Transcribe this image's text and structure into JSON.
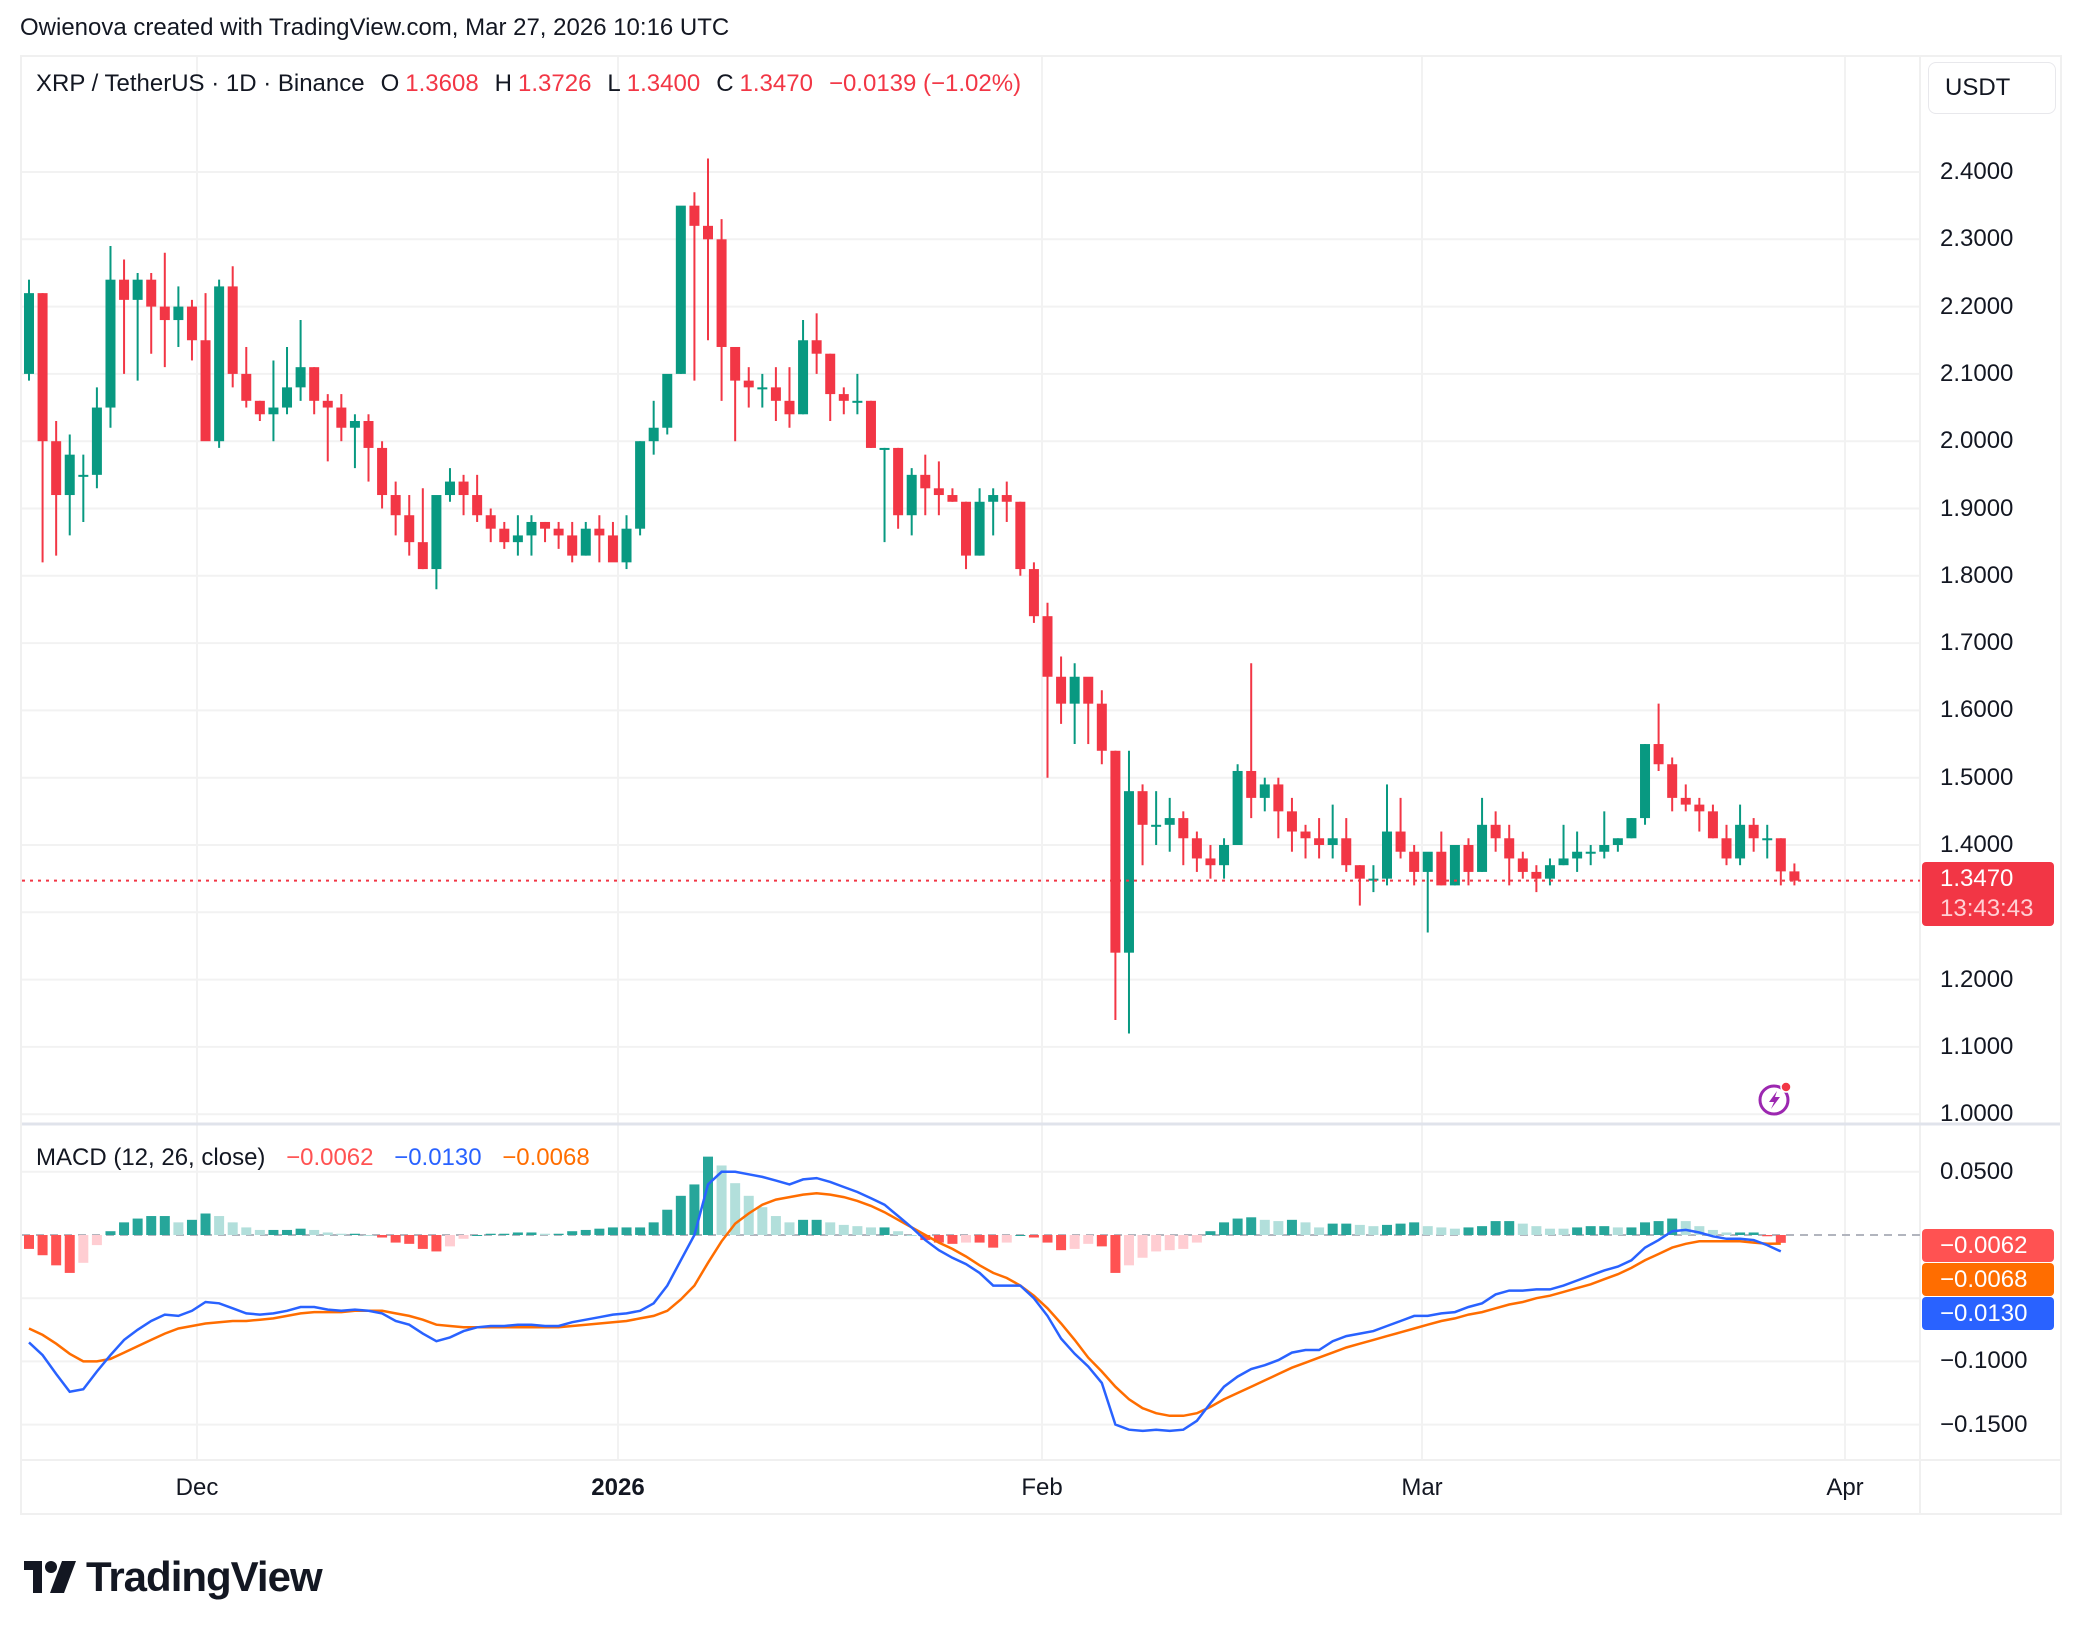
{
  "caption": "Owienova created with TradingView.com, Mar 27, 2026 10:16 UTC",
  "legend": {
    "symbol": "XRP / TetherUS · 1D · Binance",
    "open_label": "O",
    "open": "1.3608",
    "high_label": "H",
    "high": "1.3726",
    "low_label": "L",
    "low": "1.3400",
    "close_label": "C",
    "close": "1.3470",
    "change": "−0.0139 (−1.02%)"
  },
  "currency_button": "USDT",
  "price_axis": {
    "labels": [
      "2.4000",
      "2.3000",
      "2.2000",
      "2.1000",
      "2.0000",
      "1.9000",
      "1.8000",
      "1.7000",
      "1.6000",
      "1.5000",
      "1.4000",
      "1.3000",
      "1.2000",
      "1.1000",
      "1.0000"
    ],
    "current_price_tag": "1.3470",
    "countdown": "13:43:43"
  },
  "macd_legend": {
    "title": "MACD (12, 26, close)",
    "histogram": "−0.0062",
    "macd": "−0.0130",
    "signal": "−0.0068"
  },
  "macd_axis": {
    "labels": [
      "0.0500",
      "−0.1000",
      "−0.1500"
    ],
    "tags": [
      {
        "value": "−0.0062",
        "color": "#ff5252"
      },
      {
        "value": "−0.0068",
        "color": "#ff6d00"
      },
      {
        "value": "−0.0130",
        "color": "#2962ff"
      }
    ]
  },
  "x_axis": {
    "labels": [
      {
        "text": "Dec",
        "bold": false
      },
      {
        "text": "2026",
        "bold": true
      },
      {
        "text": "Feb",
        "bold": false
      },
      {
        "text": "Mar",
        "bold": false
      },
      {
        "text": "Apr",
        "bold": false
      }
    ]
  },
  "brand": "TradingView",
  "colors": {
    "up": "#089981",
    "down": "#f23645",
    "macd_line": "#2962ff",
    "signal_line": "#ff6d00",
    "hist_up_strong": "#26a69a",
    "hist_up_weak": "#b2dfdb",
    "hist_down_strong": "#ff5252",
    "hist_down_weak": "#ffcdd2",
    "grid": "#f2f2f2",
    "price_line": "#f23645",
    "bolt": "#9c27b0"
  },
  "chart_data": [
    {
      "type": "candlestick",
      "title": "XRP / TetherUS · 1D · Binance",
      "xlabel": "",
      "ylabel": "USDT",
      "ylim": [
        1.0,
        2.45
      ],
      "x_tick_labels": [
        "Dec",
        "2026",
        "Feb",
        "Mar",
        "Apr"
      ],
      "y_tick_labels": [
        "2.4000",
        "2.3000",
        "2.2000",
        "2.1000",
        "2.0000",
        "1.9000",
        "1.8000",
        "1.7000",
        "1.6000",
        "1.5000",
        "1.4000",
        "1.3000",
        "1.2000",
        "1.1000",
        "1.0000"
      ],
      "grid": true,
      "last_price": 1.347,
      "start_date": "2025-11-18",
      "interval": "1D",
      "ohlc": [
        [
          2.1,
          2.24,
          2.09,
          2.22
        ],
        [
          2.22,
          2.22,
          1.82,
          2.0
        ],
        [
          2.0,
          2.03,
          1.83,
          1.92
        ],
        [
          1.92,
          2.01,
          1.86,
          1.98
        ],
        [
          1.95,
          1.98,
          1.88,
          1.95
        ],
        [
          1.95,
          2.08,
          1.93,
          2.05
        ],
        [
          2.05,
          2.29,
          2.02,
          2.24
        ],
        [
          2.24,
          2.27,
          2.1,
          2.21
        ],
        [
          2.21,
          2.25,
          2.09,
          2.24
        ],
        [
          2.24,
          2.25,
          2.13,
          2.2
        ],
        [
          2.2,
          2.28,
          2.11,
          2.18
        ],
        [
          2.18,
          2.23,
          2.14,
          2.2
        ],
        [
          2.2,
          2.21,
          2.12,
          2.15
        ],
        [
          2.15,
          2.22,
          2.02,
          2.0
        ],
        [
          2.0,
          2.24,
          1.99,
          2.23
        ],
        [
          2.23,
          2.26,
          2.08,
          2.1
        ],
        [
          2.1,
          2.14,
          2.05,
          2.06
        ],
        [
          2.06,
          2.06,
          2.03,
          2.04
        ],
        [
          2.04,
          2.12,
          2.0,
          2.05
        ],
        [
          2.05,
          2.14,
          2.04,
          2.08
        ],
        [
          2.08,
          2.18,
          2.06,
          2.11
        ],
        [
          2.11,
          2.11,
          2.04,
          2.06
        ],
        [
          2.06,
          2.07,
          1.97,
          2.05
        ],
        [
          2.05,
          2.07,
          2.0,
          2.02
        ],
        [
          2.02,
          2.04,
          1.96,
          2.03
        ],
        [
          2.03,
          2.04,
          1.94,
          1.99
        ],
        [
          1.99,
          2.0,
          1.9,
          1.92
        ],
        [
          1.92,
          1.94,
          1.86,
          1.89
        ],
        [
          1.89,
          1.92,
          1.83,
          1.85
        ],
        [
          1.85,
          1.93,
          1.81,
          1.81
        ],
        [
          1.81,
          1.9,
          1.78,
          1.92
        ],
        [
          1.92,
          1.96,
          1.91,
          1.94
        ],
        [
          1.94,
          1.95,
          1.89,
          1.92
        ],
        [
          1.92,
          1.95,
          1.88,
          1.89
        ],
        [
          1.89,
          1.9,
          1.85,
          1.87
        ],
        [
          1.87,
          1.88,
          1.84,
          1.85
        ],
        [
          1.85,
          1.89,
          1.83,
          1.86
        ],
        [
          1.86,
          1.89,
          1.83,
          1.88
        ],
        [
          1.88,
          1.88,
          1.85,
          1.87
        ],
        [
          1.87,
          1.88,
          1.84,
          1.86
        ],
        [
          1.86,
          1.88,
          1.82,
          1.83
        ],
        [
          1.83,
          1.88,
          1.83,
          1.87
        ],
        [
          1.87,
          1.89,
          1.82,
          1.86
        ],
        [
          1.86,
          1.88,
          1.83,
          1.82
        ],
        [
          1.82,
          1.89,
          1.81,
          1.87
        ],
        [
          1.87,
          2.0,
          1.86,
          2.0
        ],
        [
          2.0,
          2.06,
          1.98,
          2.02
        ],
        [
          2.02,
          2.09,
          2.01,
          2.1
        ],
        [
          2.1,
          2.16,
          2.1,
          2.35
        ],
        [
          2.35,
          2.37,
          2.09,
          2.32
        ],
        [
          2.32,
          2.42,
          2.15,
          2.3
        ],
        [
          2.3,
          2.33,
          2.06,
          2.14
        ],
        [
          2.14,
          2.14,
          2.0,
          2.09
        ],
        [
          2.09,
          2.11,
          2.05,
          2.08
        ],
        [
          2.08,
          2.1,
          2.05,
          2.08
        ],
        [
          2.08,
          2.11,
          2.03,
          2.06
        ],
        [
          2.06,
          2.11,
          2.02,
          2.04
        ],
        [
          2.04,
          2.18,
          2.04,
          2.15
        ],
        [
          2.15,
          2.19,
          2.1,
          2.13
        ],
        [
          2.13,
          2.13,
          2.03,
          2.07
        ],
        [
          2.07,
          2.08,
          2.04,
          2.06
        ],
        [
          2.06,
          2.1,
          2.04,
          2.06
        ],
        [
          2.06,
          2.06,
          1.99,
          1.99
        ],
        [
          1.99,
          1.99,
          1.85,
          1.99
        ],
        [
          1.99,
          1.99,
          1.87,
          1.89
        ],
        [
          1.89,
          1.96,
          1.86,
          1.95
        ],
        [
          1.95,
          1.98,
          1.89,
          1.93
        ],
        [
          1.93,
          1.97,
          1.89,
          1.92
        ],
        [
          1.92,
          1.93,
          1.91,
          1.91
        ],
        [
          1.91,
          1.91,
          1.81,
          1.83
        ],
        [
          1.83,
          1.93,
          1.83,
          1.91
        ],
        [
          1.91,
          1.93,
          1.86,
          1.92
        ],
        [
          1.92,
          1.94,
          1.88,
          1.91
        ],
        [
          1.91,
          1.91,
          1.8,
          1.81
        ],
        [
          1.81,
          1.82,
          1.73,
          1.74
        ],
        [
          1.74,
          1.76,
          1.5,
          1.65
        ],
        [
          1.65,
          1.68,
          1.58,
          1.61
        ],
        [
          1.61,
          1.67,
          1.55,
          1.65
        ],
        [
          1.65,
          1.64,
          1.55,
          1.61
        ],
        [
          1.61,
          1.63,
          1.52,
          1.54
        ],
        [
          1.54,
          1.54,
          1.14,
          1.24
        ],
        [
          1.24,
          1.54,
          1.12,
          1.48
        ],
        [
          1.48,
          1.49,
          1.37,
          1.43
        ],
        [
          1.43,
          1.48,
          1.4,
          1.43
        ],
        [
          1.43,
          1.47,
          1.39,
          1.44
        ],
        [
          1.44,
          1.45,
          1.37,
          1.41
        ],
        [
          1.41,
          1.42,
          1.36,
          1.38
        ],
        [
          1.38,
          1.4,
          1.35,
          1.37
        ],
        [
          1.37,
          1.41,
          1.35,
          1.4
        ],
        [
          1.4,
          1.52,
          1.4,
          1.51
        ],
        [
          1.51,
          1.67,
          1.44,
          1.47
        ],
        [
          1.47,
          1.5,
          1.45,
          1.49
        ],
        [
          1.49,
          1.5,
          1.41,
          1.45
        ],
        [
          1.45,
          1.47,
          1.39,
          1.42
        ],
        [
          1.42,
          1.43,
          1.38,
          1.41
        ],
        [
          1.41,
          1.44,
          1.38,
          1.4
        ],
        [
          1.4,
          1.46,
          1.38,
          1.41
        ],
        [
          1.41,
          1.44,
          1.36,
          1.37
        ],
        [
          1.37,
          1.37,
          1.31,
          1.35
        ],
        [
          1.35,
          1.37,
          1.33,
          1.35
        ],
        [
          1.35,
          1.49,
          1.34,
          1.42
        ],
        [
          1.42,
          1.47,
          1.38,
          1.39
        ],
        [
          1.39,
          1.4,
          1.34,
          1.36
        ],
        [
          1.36,
          1.38,
          1.27,
          1.39
        ],
        [
          1.39,
          1.42,
          1.34,
          1.34
        ],
        [
          1.34,
          1.4,
          1.34,
          1.4
        ],
        [
          1.4,
          1.41,
          1.34,
          1.36
        ],
        [
          1.36,
          1.47,
          1.36,
          1.43
        ],
        [
          1.43,
          1.45,
          1.39,
          1.41
        ],
        [
          1.41,
          1.43,
          1.34,
          1.38
        ],
        [
          1.38,
          1.39,
          1.35,
          1.36
        ],
        [
          1.36,
          1.37,
          1.33,
          1.35
        ],
        [
          1.35,
          1.38,
          1.34,
          1.37
        ],
        [
          1.37,
          1.43,
          1.37,
          1.38
        ],
        [
          1.38,
          1.42,
          1.36,
          1.39
        ],
        [
          1.39,
          1.4,
          1.37,
          1.39
        ],
        [
          1.39,
          1.45,
          1.38,
          1.4
        ],
        [
          1.4,
          1.41,
          1.39,
          1.41
        ],
        [
          1.41,
          1.44,
          1.41,
          1.44
        ],
        [
          1.44,
          1.55,
          1.43,
          1.55
        ],
        [
          1.55,
          1.61,
          1.51,
          1.52
        ],
        [
          1.52,
          1.53,
          1.45,
          1.47
        ],
        [
          1.47,
          1.49,
          1.45,
          1.46
        ],
        [
          1.46,
          1.47,
          1.42,
          1.45
        ],
        [
          1.45,
          1.46,
          1.41,
          1.41
        ],
        [
          1.41,
          1.43,
          1.37,
          1.38
        ],
        [
          1.38,
          1.46,
          1.37,
          1.43
        ],
        [
          1.43,
          1.44,
          1.39,
          1.41
        ],
        [
          1.41,
          1.43,
          1.38,
          1.41
        ],
        [
          1.41,
          1.41,
          1.34,
          1.3608
        ],
        [
          1.3608,
          1.3726,
          1.34,
          1.347
        ]
      ],
      "macd": {
        "params": "12, 26, close",
        "last": {
          "histogram": -0.0062,
          "macd": -0.013,
          "signal": -0.0068
        },
        "ylim": [
          -0.165,
          0.07
        ],
        "macd_line": [
          -0.085,
          -0.095,
          -0.11,
          -0.124,
          -0.122,
          -0.108,
          -0.095,
          -0.083,
          -0.075,
          -0.068,
          -0.063,
          -0.064,
          -0.06,
          -0.053,
          -0.054,
          -0.058,
          -0.062,
          -0.063,
          -0.062,
          -0.06,
          -0.057,
          -0.057,
          -0.059,
          -0.06,
          -0.059,
          -0.06,
          -0.062,
          -0.068,
          -0.071,
          -0.078,
          -0.084,
          -0.081,
          -0.076,
          -0.073,
          -0.072,
          -0.072,
          -0.071,
          -0.071,
          -0.072,
          -0.072,
          -0.069,
          -0.067,
          -0.065,
          -0.063,
          -0.062,
          -0.06,
          -0.054,
          -0.04,
          -0.02,
          0.0,
          0.04,
          0.05,
          0.05,
          0.048,
          0.046,
          0.043,
          0.04,
          0.044,
          0.045,
          0.042,
          0.038,
          0.034,
          0.029,
          0.024,
          0.015,
          0.006,
          -0.004,
          -0.012,
          -0.018,
          -0.023,
          -0.03,
          -0.04,
          -0.04,
          -0.04,
          -0.05,
          -0.064,
          -0.082,
          -0.094,
          -0.104,
          -0.117,
          -0.15,
          -0.154,
          -0.155,
          -0.154,
          -0.155,
          -0.154,
          -0.147,
          -0.133,
          -0.12,
          -0.112,
          -0.106,
          -0.103,
          -0.099,
          -0.093,
          -0.091,
          -0.091,
          -0.084,
          -0.08,
          -0.078,
          -0.076,
          -0.072,
          -0.068,
          -0.064,
          -0.064,
          -0.062,
          -0.061,
          -0.057,
          -0.054,
          -0.047,
          -0.044,
          -0.044,
          -0.043,
          -0.043,
          -0.04,
          -0.036,
          -0.032,
          -0.028,
          -0.025,
          -0.02,
          -0.01,
          -0.004,
          0.003,
          0.004,
          0.002,
          -0.001,
          -0.003,
          -0.003,
          -0.004,
          -0.008,
          -0.013
        ],
        "signal_line": [
          -0.074,
          -0.079,
          -0.086,
          -0.094,
          -0.1,
          -0.1,
          -0.098,
          -0.093,
          -0.088,
          -0.083,
          -0.078,
          -0.074,
          -0.072,
          -0.07,
          -0.069,
          -0.068,
          -0.068,
          -0.067,
          -0.066,
          -0.064,
          -0.062,
          -0.061,
          -0.061,
          -0.061,
          -0.06,
          -0.06,
          -0.06,
          -0.062,
          -0.064,
          -0.067,
          -0.071,
          -0.072,
          -0.073,
          -0.073,
          -0.073,
          -0.073,
          -0.073,
          -0.073,
          -0.073,
          -0.073,
          -0.072,
          -0.071,
          -0.07,
          -0.069,
          -0.068,
          -0.066,
          -0.064,
          -0.06,
          -0.051,
          -0.04,
          -0.022,
          -0.005,
          0.009,
          0.017,
          0.024,
          0.028,
          0.03,
          0.032,
          0.033,
          0.032,
          0.03,
          0.027,
          0.023,
          0.018,
          0.012,
          0.006,
          0.0,
          -0.006,
          -0.011,
          -0.017,
          -0.024,
          -0.03,
          -0.034,
          -0.04,
          -0.048,
          -0.058,
          -0.07,
          -0.083,
          -0.097,
          -0.108,
          -0.12,
          -0.13,
          -0.137,
          -0.141,
          -0.143,
          -0.143,
          -0.141,
          -0.136,
          -0.13,
          -0.125,
          -0.12,
          -0.115,
          -0.11,
          -0.105,
          -0.101,
          -0.097,
          -0.093,
          -0.089,
          -0.086,
          -0.083,
          -0.08,
          -0.077,
          -0.074,
          -0.071,
          -0.068,
          -0.066,
          -0.063,
          -0.061,
          -0.058,
          -0.055,
          -0.053,
          -0.05,
          -0.048,
          -0.045,
          -0.042,
          -0.039,
          -0.035,
          -0.031,
          -0.026,
          -0.02,
          -0.015,
          -0.01,
          -0.007,
          -0.005,
          -0.005,
          -0.005,
          -0.005,
          -0.006,
          -0.007,
          -0.0068
        ]
      }
    }
  ]
}
